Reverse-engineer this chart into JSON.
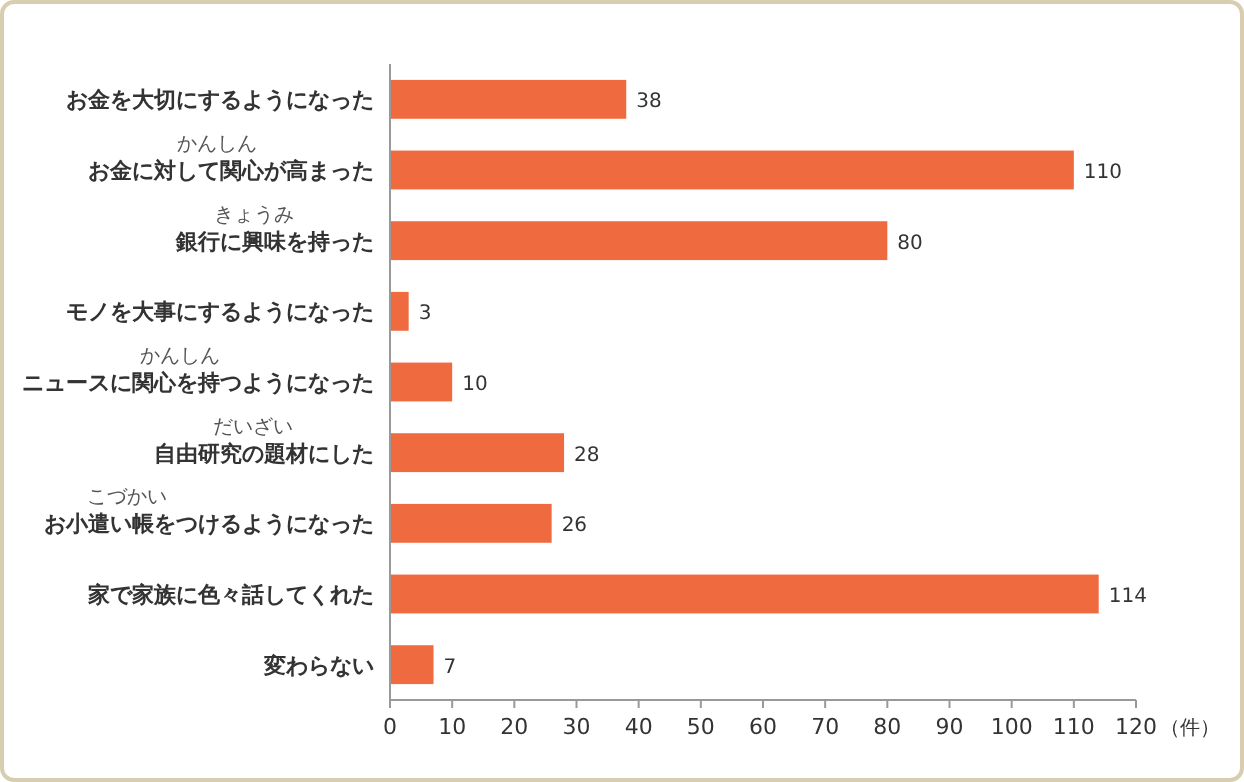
{
  "chart_data": {
    "type": "bar",
    "orientation": "horizontal",
    "categories": [
      "お金を大切にするようになった",
      "お金に対して関心が高まった",
      "銀行に興味を持った",
      "モノを大事にするようになった",
      "ニュースに関心を持つようになった",
      "自由研究の題材にした",
      "お小遣い帳をつけるようになった",
      "家で家族に色々話してくれた",
      "変わらない"
    ],
    "values": [
      38,
      110,
      80,
      3,
      10,
      28,
      26,
      114,
      7
    ],
    "color": "#ef6a3e",
    "xlim": [
      0,
      120
    ],
    "xticks": [
      0,
      10,
      20,
      30,
      40,
      50,
      60,
      70,
      80,
      90,
      100,
      110,
      120
    ],
    "xlabel": "（件）",
    "data_labels": true,
    "grid": false,
    "annotations": [
      "かんしん",
      "きょうみ",
      "かんしん",
      "だいざい",
      "こづかい"
    ]
  }
}
